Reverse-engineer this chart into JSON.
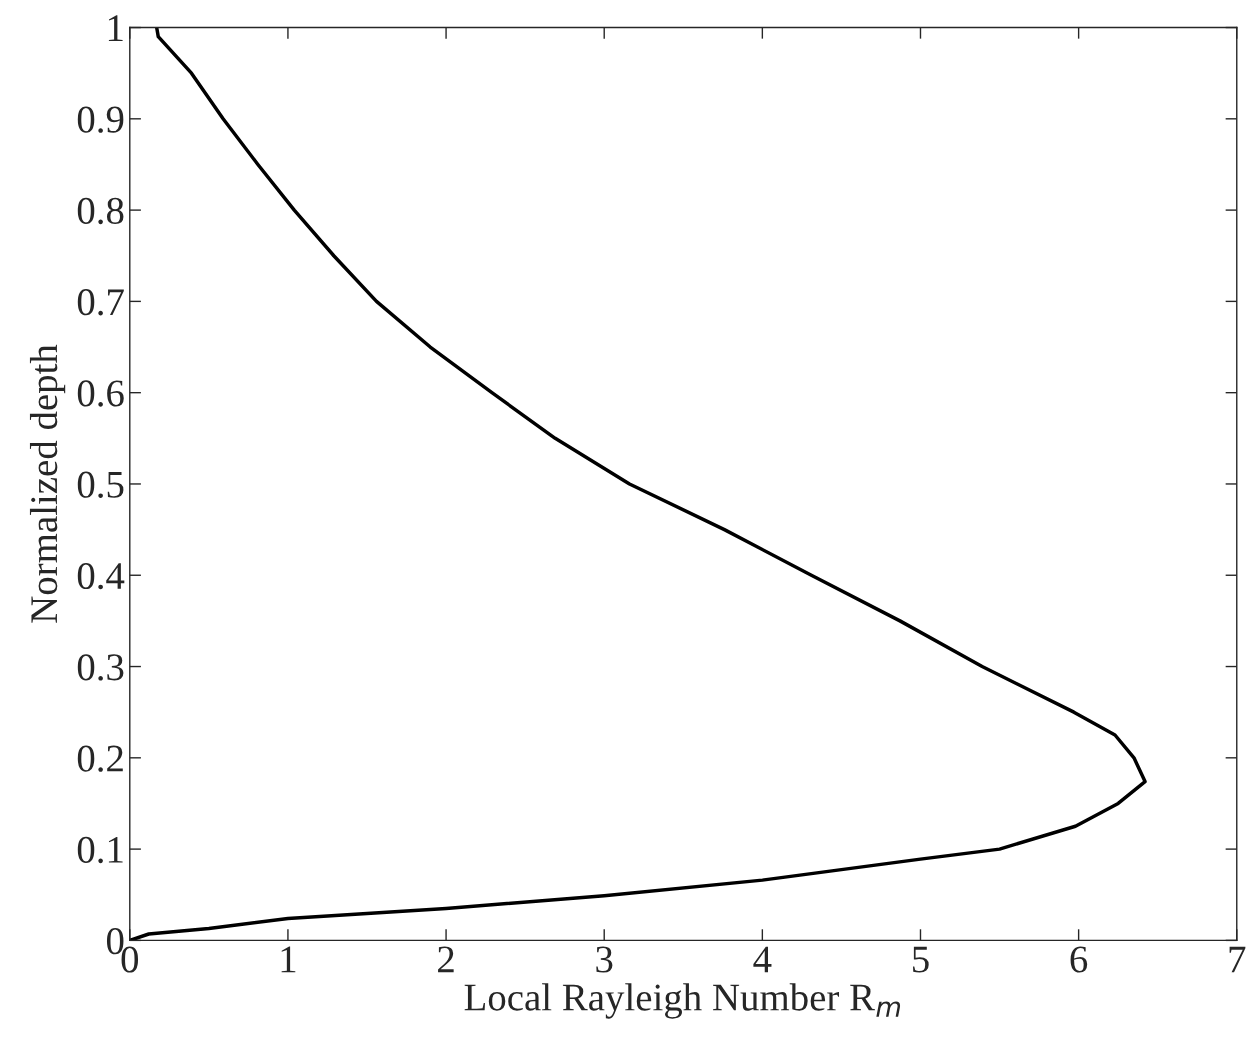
{
  "chart_data": {
    "type": "line",
    "xlabel": "Local Rayleigh Number R$_{m}$",
    "ylabel": "Normalized depth",
    "xlim": [
      0,
      7
    ],
    "xticks": [
      0,
      1,
      2,
      3,
      4,
      5,
      6,
      7
    ],
    "ylim": [
      0,
      1
    ],
    "yticks": [
      0,
      0.1,
      0.2,
      0.3,
      0.4,
      0.5,
      0.6,
      0.7,
      0.8,
      0.9,
      1
    ],
    "grid": false,
    "legend": false,
    "marker": "none",
    "line_style": "solid",
    "series": [
      {
        "color": "#000000",
        "x": [
          0,
          0.12,
          0.5,
          1,
          2,
          3,
          4,
          5,
          5.5,
          5.98,
          6.25,
          6.42,
          6.35,
          6.23,
          5.97,
          5.39,
          4.87,
          4.31,
          3.76,
          3.16,
          2.69,
          2.29,
          1.9,
          1.56,
          1.29,
          1.04,
          0.81,
          0.59,
          0.39,
          0.18,
          0.17
        ],
        "values": [
          0,
          0.007,
          0.013,
          0.024,
          0.035,
          0.049,
          0.066,
          0.089,
          0.1,
          0.125,
          0.15,
          0.174,
          0.2,
          0.225,
          0.25,
          0.3,
          0.35,
          0.4,
          0.45,
          0.5,
          0.55,
          0.6,
          0.65,
          0.7,
          0.75,
          0.8,
          0.85,
          0.9,
          0.95,
          0.99,
          1.0
        ]
      }
    ]
  }
}
